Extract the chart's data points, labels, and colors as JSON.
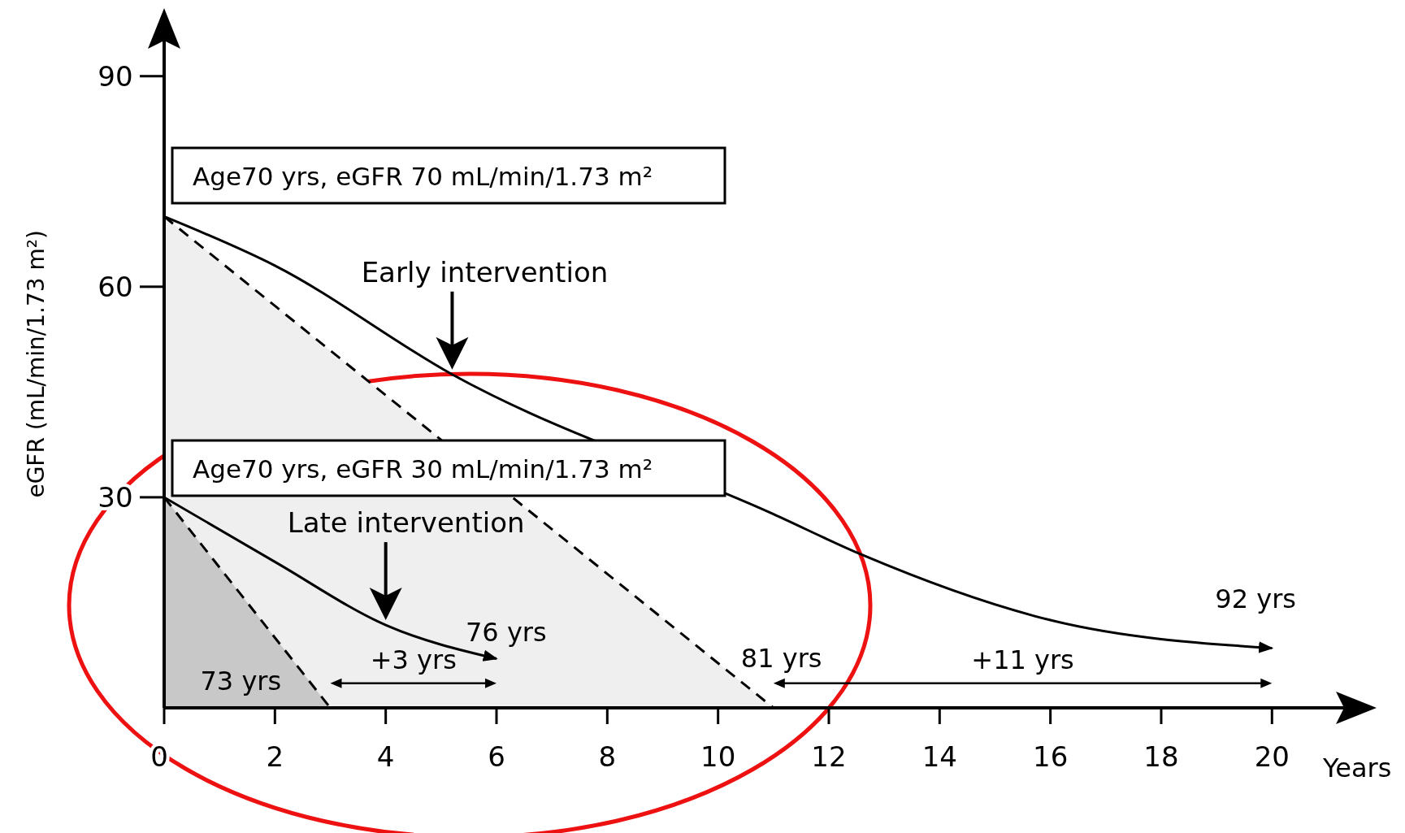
{
  "chart_data": {
    "type": "line",
    "xlabel": "Years",
    "ylabel": "eGFR (mL/min/1.73 m²)",
    "xlim": [
      0,
      21.8
    ],
    "xticks": [
      0,
      2,
      4,
      6,
      8,
      10,
      12,
      14,
      16,
      18,
      20
    ],
    "ylim": [
      0,
      99
    ],
    "yticks": [
      30,
      60,
      90
    ],
    "grid": false,
    "marker": "none",
    "series": [
      {
        "type": "area",
        "color": "#efefef",
        "line_style": "dashed",
        "x": [
          0,
          11
        ],
        "values": [
          70,
          0
        ]
      },
      {
        "type": "area",
        "color": "#c8c8c8",
        "line_style": "dashed",
        "x": [
          0,
          3
        ],
        "values": [
          30,
          0
        ]
      },
      {
        "color": "#000000",
        "line_style": "solid",
        "x": [
          0,
          2,
          5.2,
          11,
          12.6,
          16,
          20
        ],
        "values": [
          70,
          63,
          47.5,
          27.6,
          21.8,
          12.5,
          8.5
        ]
      },
      {
        "color": "#000000",
        "line_style": "solid",
        "x": [
          0,
          2,
          4,
          6
        ],
        "values": [
          30,
          20.8,
          11.8,
          7
        ]
      }
    ],
    "annotations": [
      {
        "text": "Age70 yrs, eGFR 70 mL/min/1.73 m²",
        "x": 0,
        "y": 70
      },
      {
        "text": "Age70 yrs, eGFR 30 mL/min/1.73 m²",
        "x": 0,
        "y": 30
      },
      "Early intervention",
      "Late intervention",
      {
        "text": "76 yrs",
        "x": 6,
        "y": 7
      },
      {
        "text": "73 yrs",
        "x": 3,
        "y": 0
      },
      {
        "text": "81 yrs",
        "x": 11,
        "y": 0
      },
      {
        "text": "92 yrs",
        "x": 20,
        "y": 8.5
      },
      "+3 yrs",
      "+11 yrs"
    ]
  }
}
